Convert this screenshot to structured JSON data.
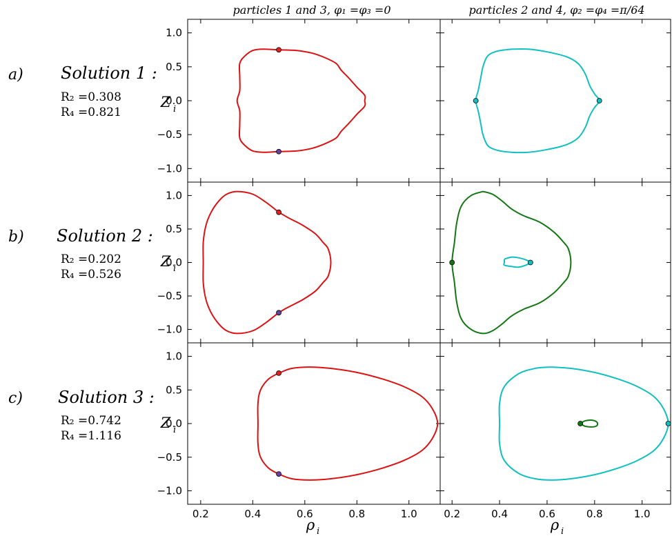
{
  "figure": {
    "column_titles": [
      "particles 1 and 3, φ₁ =φ₃ =0",
      "particles 2 and 4, φ₂ =φ₄ =π/64"
    ],
    "x_axis_label": "ρ",
    "x_axis_label_sub": "i",
    "y_axis_label": "Z",
    "y_axis_label_sub": "i",
    "rows": [
      {
        "letter": "a)",
        "solution": "Solution 1 :",
        "r2": "R₂ =0.308",
        "r4": "R₄ =0.821"
      },
      {
        "letter": "b)",
        "solution": "Solution 2 :",
        "r2": "R₂ =0.202",
        "r4": "R₄ =0.526"
      },
      {
        "letter": "c)",
        "solution": "Solution 3 :",
        "r2": "R₂ =0.742",
        "r4": "R₄ =1.116"
      }
    ]
  },
  "colors": {
    "red": "#dd1111",
    "cyan": "#10c0c0",
    "green": "#117711",
    "red_dot": "#dd2222",
    "purple_dot": "#6a3fa0"
  },
  "chart_data": {
    "type": "line",
    "xlim": [
      0.15,
      1.12
    ],
    "ylim": [
      -1.2,
      1.2
    ],
    "xticks": [
      0.2,
      0.4,
      0.6,
      0.8,
      1.0
    ],
    "xtick_labels": [
      "0.2",
      "0.4",
      "0.6",
      "0.8",
      "1.0"
    ],
    "yticks": [
      -1.0,
      -0.5,
      0.0,
      0.5,
      1.0
    ],
    "ytick_labels": [
      "−1.0",
      "−0.5",
      "0.0",
      "0.5",
      "1.0"
    ],
    "panels": [
      {
        "row": 0,
        "col": 0,
        "curves": [
          {
            "color": "red",
            "points": [
              [
                0.5,
                0.75
              ],
              [
                0.57,
                0.74
              ],
              [
                0.63,
                0.7
              ],
              [
                0.68,
                0.63
              ],
              [
                0.72,
                0.55
              ],
              [
                0.74,
                0.45
              ],
              [
                0.77,
                0.33
              ],
              [
                0.8,
                0.2
              ],
              [
                0.83,
                0.08
              ],
              [
                0.83,
                0.0
              ],
              [
                0.83,
                -0.08
              ],
              [
                0.8,
                -0.2
              ],
              [
                0.77,
                -0.33
              ],
              [
                0.74,
                -0.45
              ],
              [
                0.72,
                -0.55
              ],
              [
                0.68,
                -0.63
              ],
              [
                0.63,
                -0.7
              ],
              [
                0.57,
                -0.74
              ],
              [
                0.5,
                -0.75
              ],
              [
                0.44,
                -0.76
              ],
              [
                0.4,
                -0.74
              ],
              [
                0.37,
                -0.66
              ],
              [
                0.35,
                -0.55
              ],
              [
                0.35,
                -0.35
              ],
              [
                0.35,
                -0.15
              ],
              [
                0.34,
                0.0
              ],
              [
                0.35,
                0.15
              ],
              [
                0.35,
                0.35
              ],
              [
                0.35,
                0.55
              ],
              [
                0.37,
                0.66
              ],
              [
                0.4,
                0.74
              ],
              [
                0.44,
                0.76
              ],
              [
                0.5,
                0.75
              ]
            ]
          }
        ],
        "markers": [
          {
            "x": 0.5,
            "y": 0.75,
            "color": "red_dot"
          },
          {
            "x": 0.5,
            "y": -0.75,
            "color": "purple_dot"
          }
        ]
      },
      {
        "row": 0,
        "col": 1,
        "curves": [
          {
            "color": "cyan",
            "points": [
              [
                0.45,
                0.76
              ],
              [
                0.52,
                0.76
              ],
              [
                0.6,
                0.72
              ],
              [
                0.68,
                0.65
              ],
              [
                0.73,
                0.55
              ],
              [
                0.76,
                0.4
              ],
              [
                0.78,
                0.22
              ],
              [
                0.8,
                0.1
              ],
              [
                0.82,
                0.0
              ],
              [
                0.8,
                -0.1
              ],
              [
                0.78,
                -0.22
              ],
              [
                0.76,
                -0.4
              ],
              [
                0.73,
                -0.55
              ],
              [
                0.68,
                -0.65
              ],
              [
                0.6,
                -0.72
              ],
              [
                0.52,
                -0.76
              ],
              [
                0.45,
                -0.76
              ],
              [
                0.39,
                -0.73
              ],
              [
                0.35,
                -0.66
              ],
              [
                0.33,
                -0.5
              ],
              [
                0.32,
                -0.32
              ],
              [
                0.31,
                -0.15
              ],
              [
                0.3,
                0.0
              ],
              [
                0.31,
                0.15
              ],
              [
                0.32,
                0.32
              ],
              [
                0.33,
                0.5
              ],
              [
                0.35,
                0.66
              ],
              [
                0.39,
                0.73
              ],
              [
                0.45,
                0.76
              ]
            ]
          }
        ],
        "markers": [
          {
            "x": 0.3,
            "y": 0.0,
            "color": "cyan"
          },
          {
            "x": 0.82,
            "y": 0.0,
            "color": "cyan"
          }
        ]
      },
      {
        "row": 1,
        "col": 0,
        "curves": [
          {
            "color": "red",
            "points": [
              [
                0.5,
                0.75
              ],
              [
                0.54,
                0.66
              ],
              [
                0.59,
                0.56
              ],
              [
                0.64,
                0.43
              ],
              [
                0.67,
                0.3
              ],
              [
                0.69,
                0.2
              ],
              [
                0.7,
                0.0
              ],
              [
                0.69,
                -0.2
              ],
              [
                0.67,
                -0.3
              ],
              [
                0.64,
                -0.43
              ],
              [
                0.59,
                -0.56
              ],
              [
                0.54,
                -0.66
              ],
              [
                0.5,
                -0.75
              ],
              [
                0.45,
                -0.9
              ],
              [
                0.4,
                -1.02
              ],
              [
                0.34,
                -1.06
              ],
              [
                0.3,
                -1.02
              ],
              [
                0.27,
                -0.92
              ],
              [
                0.24,
                -0.75
              ],
              [
                0.22,
                -0.55
              ],
              [
                0.21,
                -0.3
              ],
              [
                0.21,
                0.0
              ],
              [
                0.21,
                0.3
              ],
              [
                0.22,
                0.55
              ],
              [
                0.24,
                0.75
              ],
              [
                0.27,
                0.92
              ],
              [
                0.3,
                1.02
              ],
              [
                0.34,
                1.06
              ],
              [
                0.4,
                1.02
              ],
              [
                0.45,
                0.9
              ],
              [
                0.5,
                0.75
              ]
            ]
          }
        ],
        "markers": [
          {
            "x": 0.5,
            "y": 0.75,
            "color": "red_dot"
          },
          {
            "x": 0.5,
            "y": -0.75,
            "color": "purple_dot"
          }
        ]
      },
      {
        "row": 1,
        "col": 1,
        "curves": [
          {
            "color": "green",
            "points": [
              [
                0.33,
                1.06
              ],
              [
                0.37,
                1.02
              ],
              [
                0.41,
                0.92
              ],
              [
                0.45,
                0.8
              ],
              [
                0.5,
                0.7
              ],
              [
                0.57,
                0.6
              ],
              [
                0.63,
                0.45
              ],
              [
                0.67,
                0.3
              ],
              [
                0.69,
                0.2
              ],
              [
                0.7,
                0.0
              ],
              [
                0.69,
                -0.2
              ],
              [
                0.67,
                -0.3
              ],
              [
                0.63,
                -0.45
              ],
              [
                0.57,
                -0.6
              ],
              [
                0.5,
                -0.7
              ],
              [
                0.45,
                -0.8
              ],
              [
                0.41,
                -0.92
              ],
              [
                0.37,
                -1.02
              ],
              [
                0.33,
                -1.06
              ],
              [
                0.28,
                -1.0
              ],
              [
                0.24,
                -0.85
              ],
              [
                0.22,
                -0.6
              ],
              [
                0.21,
                -0.3
              ],
              [
                0.2,
                0.0
              ],
              [
                0.21,
                0.3
              ],
              [
                0.22,
                0.6
              ],
              [
                0.24,
                0.85
              ],
              [
                0.28,
                1.0
              ],
              [
                0.33,
                1.06
              ]
            ]
          },
          {
            "color": "cyan",
            "points": [
              [
                0.42,
                0.05
              ],
              [
                0.45,
                0.08
              ],
              [
                0.48,
                0.07
              ],
              [
                0.51,
                0.04
              ],
              [
                0.53,
                0.0
              ],
              [
                0.51,
                -0.04
              ],
              [
                0.48,
                -0.07
              ],
              [
                0.45,
                -0.06
              ],
              [
                0.42,
                -0.04
              ],
              [
                0.42,
                0.0
              ],
              [
                0.42,
                0.05
              ]
            ]
          }
        ],
        "markers": [
          {
            "x": 0.2,
            "y": 0.0,
            "color": "green"
          },
          {
            "x": 0.53,
            "y": 0.0,
            "color": "cyan"
          }
        ]
      },
      {
        "row": 2,
        "col": 0,
        "curves": [
          {
            "color": "red",
            "points": [
              [
                0.5,
                0.75
              ],
              [
                0.55,
                0.82
              ],
              [
                0.62,
                0.84
              ],
              [
                0.7,
                0.82
              ],
              [
                0.8,
                0.76
              ],
              [
                0.9,
                0.66
              ],
              [
                0.98,
                0.55
              ],
              [
                1.05,
                0.4
              ],
              [
                1.09,
                0.22
              ],
              [
                1.11,
                0.0
              ],
              [
                1.09,
                -0.22
              ],
              [
                1.05,
                -0.4
              ],
              [
                0.98,
                -0.55
              ],
              [
                0.9,
                -0.66
              ],
              [
                0.8,
                -0.76
              ],
              [
                0.7,
                -0.82
              ],
              [
                0.62,
                -0.84
              ],
              [
                0.55,
                -0.82
              ],
              [
                0.5,
                -0.75
              ],
              [
                0.46,
                -0.66
              ],
              [
                0.43,
                -0.5
              ],
              [
                0.42,
                -0.3
              ],
              [
                0.42,
                0.0
              ],
              [
                0.42,
                0.3
              ],
              [
                0.43,
                0.5
              ],
              [
                0.46,
                0.66
              ],
              [
                0.5,
                0.75
              ]
            ]
          }
        ],
        "markers": [
          {
            "x": 0.5,
            "y": 0.75,
            "color": "red_dot"
          },
          {
            "x": 0.5,
            "y": -0.75,
            "color": "purple_dot"
          }
        ]
      },
      {
        "row": 2,
        "col": 1,
        "curves": [
          {
            "color": "cyan",
            "points": [
              [
                0.62,
                0.84
              ],
              [
                0.7,
                0.82
              ],
              [
                0.8,
                0.76
              ],
              [
                0.9,
                0.66
              ],
              [
                0.98,
                0.55
              ],
              [
                1.05,
                0.4
              ],
              [
                1.09,
                0.22
              ],
              [
                1.11,
                0.0
              ],
              [
                1.09,
                -0.22
              ],
              [
                1.05,
                -0.4
              ],
              [
                0.98,
                -0.55
              ],
              [
                0.9,
                -0.66
              ],
              [
                0.8,
                -0.76
              ],
              [
                0.7,
                -0.82
              ],
              [
                0.62,
                -0.84
              ],
              [
                0.55,
                -0.82
              ],
              [
                0.48,
                -0.74
              ],
              [
                0.42,
                -0.55
              ],
              [
                0.4,
                -0.3
              ],
              [
                0.4,
                0.0
              ],
              [
                0.4,
                0.3
              ],
              [
                0.42,
                0.55
              ],
              [
                0.48,
                0.74
              ],
              [
                0.55,
                0.82
              ],
              [
                0.62,
                0.84
              ]
            ]
          },
          {
            "color": "green",
            "points": [
              [
                0.74,
                0.0
              ],
              [
                0.76,
                0.04
              ],
              [
                0.79,
                0.05
              ],
              [
                0.81,
                0.02
              ],
              [
                0.81,
                -0.03
              ],
              [
                0.79,
                -0.05
              ],
              [
                0.76,
                -0.04
              ],
              [
                0.74,
                0.0
              ]
            ]
          }
        ],
        "markers": [
          {
            "x": 0.74,
            "y": 0.0,
            "color": "green"
          },
          {
            "x": 1.11,
            "y": 0.0,
            "color": "cyan"
          }
        ]
      }
    ]
  }
}
